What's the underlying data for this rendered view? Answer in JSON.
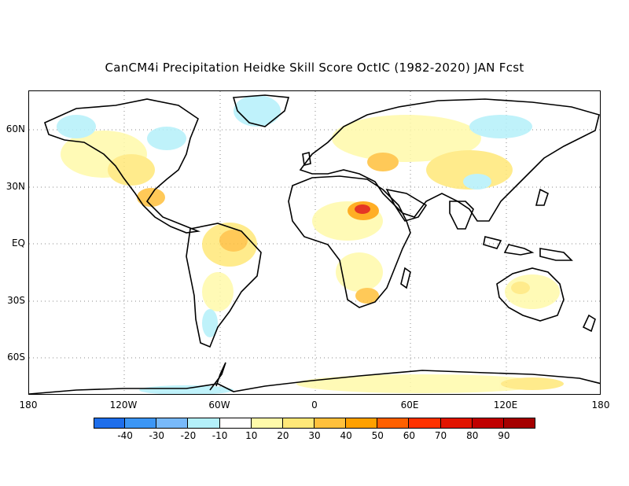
{
  "title": "CanCM4i Precipitation Heidke Skill Score OctIC (1982-2020) JAN Fcst",
  "lat_labels": [
    "60N",
    "30N",
    "EQ",
    "30S",
    "60S"
  ],
  "lon_labels": [
    "180",
    "120W",
    "60W",
    "0",
    "60E",
    "120E",
    "180"
  ],
  "colorbar": {
    "colors": [
      "#1e6eeb",
      "#3c96f5",
      "#78b9fa",
      "#b4f0fa",
      "#ffffff",
      "#fffaaa",
      "#ffe878",
      "#ffc03c",
      "#ffa000",
      "#ff6000",
      "#ff3200",
      "#e11400",
      "#c00000",
      "#a50000"
    ],
    "labels": [
      "-40",
      "-30",
      "-20",
      "-10",
      "10",
      "20",
      "30",
      "40",
      "50",
      "60",
      "70",
      "80",
      "90"
    ]
  }
}
